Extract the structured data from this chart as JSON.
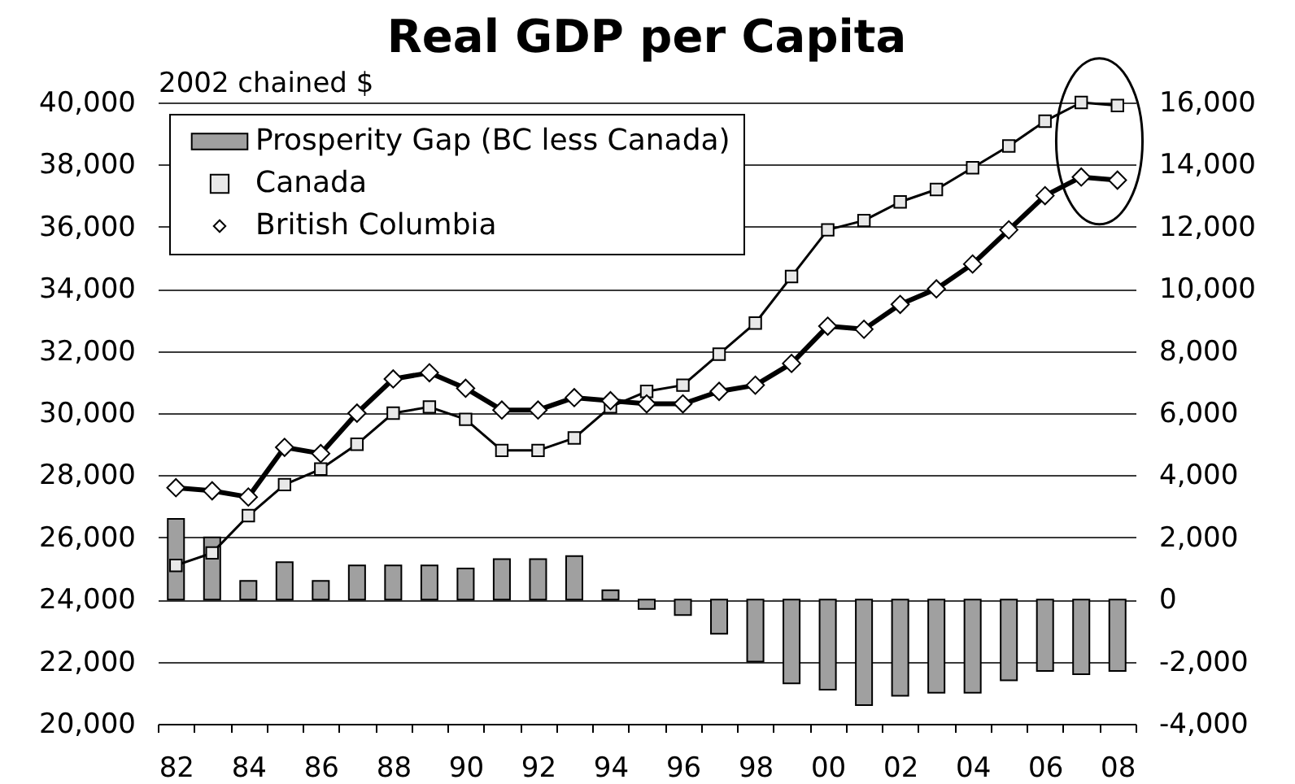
{
  "chart_data": {
    "type": "bar",
    "title": "Real GDP per Capita",
    "ylabel": "2002 chained $",
    "categories": [
      "82",
      null,
      "84",
      null,
      "86",
      null,
      "88",
      null,
      "90",
      null,
      "92",
      null,
      "94",
      null,
      "96",
      null,
      "98",
      null,
      "00",
      null,
      "02",
      null,
      "04",
      null,
      "06",
      null,
      "08"
    ],
    "series": [
      {
        "name": "Prosperity Gap (BC less Canada)",
        "axis": "y2",
        "color": "#a0a0a0",
        "values": [
          2600,
          2000,
          600,
          1200,
          600,
          1100,
          1100,
          1100,
          1000,
          1300,
          1300,
          1400,
          300,
          -300,
          -500,
          -1100,
          -2000,
          -2700,
          -2900,
          -3400,
          -3100,
          -3000,
          -3000,
          -2600,
          -2300,
          -2400,
          -2300
        ]
      },
      {
        "name": "Canada",
        "type": "line",
        "color": "#000000",
        "marker": "square",
        "values": [
          25100,
          25500,
          26700,
          27700,
          28200,
          29000,
          30000,
          30200,
          29800,
          28800,
          28800,
          29200,
          30200,
          30700,
          30900,
          31900,
          32900,
          34400,
          35900,
          36200,
          36800,
          37200,
          37900,
          38600,
          39400,
          40000,
          39900
        ]
      },
      {
        "name": "British Columbia",
        "type": "line",
        "color": "#000000",
        "marker": "diamond",
        "values": [
          27600,
          27500,
          27300,
          28900,
          28700,
          30000,
          31100,
          31300,
          30800,
          30100,
          30100,
          30500,
          30400,
          30300,
          30300,
          30700,
          30900,
          31600,
          32800,
          32700,
          33500,
          34000,
          34800,
          35900,
          37000,
          37600,
          37500
        ]
      }
    ],
    "ylim": [
      20000,
      40000
    ],
    "yticks": [
      {
        "value": 20000,
        "label": "20,000"
      },
      {
        "value": 22000,
        "label": "22,000"
      },
      {
        "value": 24000,
        "label": "24,000"
      },
      {
        "value": 26000,
        "label": "26,000"
      },
      {
        "value": 28000,
        "label": "28,000"
      },
      {
        "value": 30000,
        "label": "30,000"
      },
      {
        "value": 32000,
        "label": "32,000"
      },
      {
        "value": 34000,
        "label": "34,000"
      },
      {
        "value": 36000,
        "label": "36,000"
      },
      {
        "value": 38000,
        "label": "38,000"
      },
      {
        "value": 40000,
        "label": "40,000"
      }
    ],
    "y2lim": [
      -4000,
      16000
    ],
    "y2ticks": [
      {
        "value": -4000,
        "label": "-4,000"
      },
      {
        "value": -2000,
        "label": "-2,000"
      },
      0,
      {
        "value": 2000,
        "label": "2,000"
      },
      {
        "value": 4000,
        "label": "4,000"
      },
      {
        "value": 6000,
        "label": "6,000"
      },
      {
        "value": 8000,
        "label": "8,000"
      },
      {
        "value": 10000,
        "label": "10,000"
      },
      {
        "value": 12000,
        "label": "12,000"
      },
      {
        "value": 14000,
        "label": "14,000"
      },
      {
        "value": 16000,
        "label": "16,000"
      }
    ],
    "grid": "y",
    "legend": "top left"
  }
}
